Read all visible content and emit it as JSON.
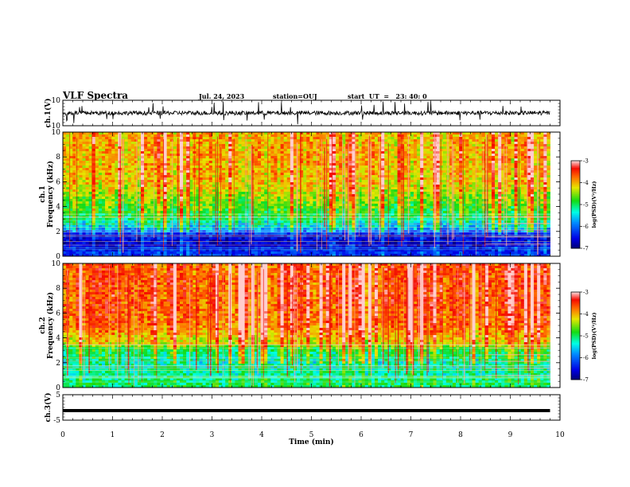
{
  "header": {
    "title": "VLF Spectra",
    "date": "Jul. 24, 2023",
    "station": "station=OUJ",
    "start": "start  UT  =   23: 40: 0"
  },
  "chart_data": [
    {
      "type": "line",
      "panel": "ch1-waveform",
      "ylabel": "ch.1(V)",
      "ylim": [
        -10,
        10
      ],
      "y_ticks": [
        "10",
        "-10"
      ],
      "x_range": [
        0,
        10
      ],
      "trace_extent_min": 9.8,
      "baseline_v": 0,
      "noise_amplitude_v": 3
    },
    {
      "type": "heatmap",
      "panel": "ch1-spectrogram",
      "ylabel": "ch.1\nFrequency (kHz)",
      "ylim": [
        0,
        10
      ],
      "y_ticks": [
        "0",
        "2",
        "4",
        "6",
        "8",
        "10"
      ],
      "x_range": [
        0,
        10
      ],
      "data_extent_min": 9.8,
      "colorbar": {
        "label": "log(PSD)(V²/Hz)",
        "range": [
          -7,
          -3
        ],
        "ticks": [
          "-3",
          "-4",
          "-5",
          "-6",
          "-7"
        ]
      },
      "approx_log_psd_profile": [
        {
          "freq_khz": 0.3,
          "value": -6.3
        },
        {
          "freq_khz": 1.0,
          "value": -6.6
        },
        {
          "freq_khz": 1.6,
          "value": -6.5
        },
        {
          "freq_khz": 2.3,
          "value": -5.6
        },
        {
          "freq_khz": 3.0,
          "value": -5.0
        },
        {
          "freq_khz": 4.0,
          "value": -4.7
        },
        {
          "freq_khz": 5.0,
          "value": -4.4
        },
        {
          "freq_khz": 6.0,
          "value": -4.1
        },
        {
          "freq_khz": 8.0,
          "value": -4.0
        },
        {
          "freq_khz": 10.0,
          "value": -4.0
        }
      ]
    },
    {
      "type": "heatmap",
      "panel": "ch2-spectrogram",
      "ylabel": "ch.2\nFrequency (kHz)",
      "ylim": [
        0,
        10
      ],
      "y_ticks": [
        "0",
        "2",
        "4",
        "6",
        "8",
        "10"
      ],
      "x_range": [
        0,
        10
      ],
      "data_extent_min": 9.8,
      "colorbar": {
        "label": "log(PSD)(V²/Hz)",
        "range": [
          -7,
          -3
        ],
        "ticks": [
          "-3",
          "-4",
          "-5",
          "-6",
          "-7"
        ]
      },
      "approx_log_psd_profile": [
        {
          "freq_khz": 0.3,
          "value": -5.0
        },
        {
          "freq_khz": 1.0,
          "value": -5.2
        },
        {
          "freq_khz": 2.0,
          "value": -5.2
        },
        {
          "freq_khz": 3.0,
          "value": -4.9
        },
        {
          "freq_khz": 3.6,
          "value": -4.2
        },
        {
          "freq_khz": 5.0,
          "value": -3.7
        },
        {
          "freq_khz": 7.0,
          "value": -3.6
        },
        {
          "freq_khz": 10.0,
          "value": -3.6
        }
      ]
    },
    {
      "type": "line",
      "panel": "ch3-waveform",
      "ylabel": "ch.3(V)",
      "ylim": [
        -5,
        5
      ],
      "y_ticks": [
        "5",
        "-5"
      ],
      "x_range": [
        0,
        10
      ],
      "trace_extent_min": 9.8,
      "constant_value_v": 0
    }
  ],
  "x_axis": {
    "label": "Time (min)",
    "ticks": [
      "0",
      "1",
      "2",
      "3",
      "4",
      "5",
      "6",
      "7",
      "8",
      "9",
      "10"
    ]
  }
}
